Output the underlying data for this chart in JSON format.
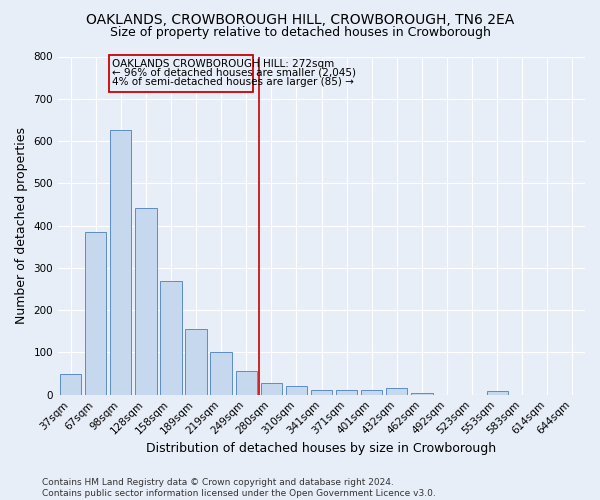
{
  "title": "OAKLANDS, CROWBOROUGH HILL, CROWBOROUGH, TN6 2EA",
  "subtitle": "Size of property relative to detached houses in Crowborough",
  "xlabel": "Distribution of detached houses by size in Crowborough",
  "ylabel": "Number of detached properties",
  "categories": [
    "37sqm",
    "67sqm",
    "98sqm",
    "128sqm",
    "158sqm",
    "189sqm",
    "219sqm",
    "249sqm",
    "280sqm",
    "310sqm",
    "341sqm",
    "371sqm",
    "401sqm",
    "432sqm",
    "462sqm",
    "492sqm",
    "523sqm",
    "553sqm",
    "583sqm",
    "614sqm",
    "644sqm"
  ],
  "values": [
    50,
    385,
    625,
    442,
    268,
    155,
    100,
    55,
    28,
    20,
    12,
    12,
    12,
    15,
    5,
    0,
    0,
    8,
    0,
    0,
    0
  ],
  "bar_color": "#c5d8ed",
  "bar_edge_color": "#5b8dc8",
  "background_color": "#e8eef8",
  "grid_color": "#ffffff",
  "vline_color": "#cc0000",
  "vline_x_index": 8,
  "annotation_line1": "OAKLANDS CROWBOROUGH HILL: 272sqm",
  "annotation_line2": "← 96% of detached houses are smaller (2,045)",
  "annotation_line3": "4% of semi-detached houses are larger (85) →",
  "annotation_box_color": "#cc0000",
  "ylim": [
    0,
    800
  ],
  "yticks": [
    0,
    100,
    200,
    300,
    400,
    500,
    600,
    700,
    800
  ],
  "footnote": "Contains HM Land Registry data © Crown copyright and database right 2024.\nContains public sector information licensed under the Open Government Licence v3.0.",
  "title_fontsize": 10,
  "subtitle_fontsize": 9,
  "xlabel_fontsize": 9,
  "ylabel_fontsize": 9,
  "tick_fontsize": 7.5,
  "annotation_fontsize": 7.5,
  "footnote_fontsize": 6.5
}
